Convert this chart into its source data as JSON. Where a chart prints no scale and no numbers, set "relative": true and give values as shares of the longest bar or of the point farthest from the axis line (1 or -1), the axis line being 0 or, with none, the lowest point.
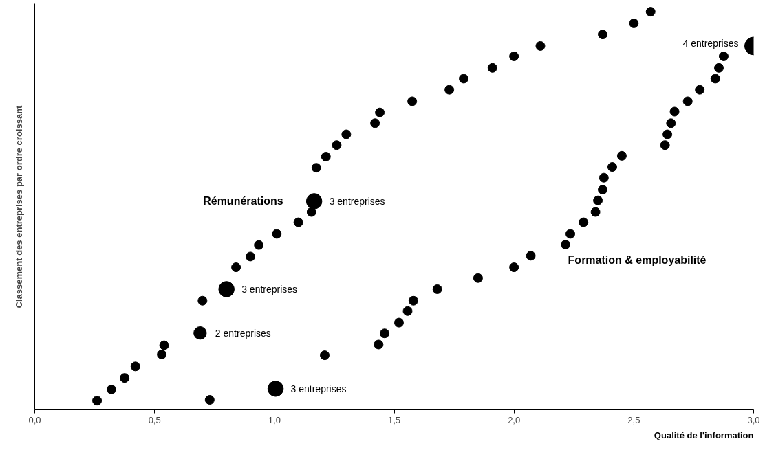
{
  "chart_data": {
    "type": "bubble",
    "relative": true,
    "xlabel": "Qualité de l'information",
    "ylabel": "Classement des entreprises par ordre croissant",
    "xlim": [
      0,
      3
    ],
    "xticks": [
      {
        "value": 0,
        "label": "0,0"
      },
      {
        "value": 0.5,
        "label": "0,5"
      },
      {
        "value": 1,
        "label": "1,0"
      },
      {
        "value": 1.5,
        "label": "1,5"
      },
      {
        "value": 2,
        "label": "2,0"
      },
      {
        "value": 2.5,
        "label": "2,5"
      },
      {
        "value": 3,
        "label": "3,0"
      }
    ],
    "grid": false,
    "series": [
      {
        "name": "Rémunérations",
        "color": "#000000",
        "x": [
          0.26,
          0.32,
          0.375,
          0.42,
          0.53,
          0.54,
          0.69,
          0.7,
          0.8,
          0.84,
          0.9,
          0.935,
          1.01,
          1.1,
          1.155,
          1.166,
          1.175,
          1.215,
          1.26,
          1.3,
          1.42,
          1.44,
          1.575,
          1.73,
          1.79,
          1.91,
          2.0,
          2.11,
          2.37,
          2.5,
          2.57
        ],
        "values": [
          0.023,
          0.051,
          0.08,
          0.109,
          0.139,
          0.162,
          0.193,
          0.274,
          0.303,
          0.358,
          0.385,
          0.414,
          0.442,
          0.471,
          0.497,
          0.524,
          0.608,
          0.636,
          0.665,
          0.692,
          0.72,
          0.747,
          0.775,
          0.804,
          0.832,
          0.859,
          0.888,
          0.914,
          0.943,
          0.971,
          1.0
        ],
        "sizes": [
          0.25,
          0.25,
          0.25,
          0.25,
          0.25,
          0.25,
          0.5,
          0.25,
          0.75,
          0.25,
          0.25,
          0.25,
          0.25,
          0.25,
          0.25,
          0.75,
          0.25,
          0.25,
          0.25,
          0.25,
          0.25,
          0.25,
          0.25,
          0.25,
          0.25,
          0.25,
          0.25,
          0.25,
          0.25,
          0.25,
          0.25
        ]
      },
      {
        "name": "Formation & employabilité",
        "color": "#000000",
        "x": [
          0.73,
          1.005,
          1.21,
          1.435,
          1.46,
          1.52,
          1.556,
          1.58,
          1.68,
          1.85,
          2.0,
          2.07,
          2.215,
          2.235,
          2.29,
          2.34,
          2.35,
          2.37,
          2.375,
          2.41,
          2.45,
          2.63,
          2.64,
          2.655,
          2.67,
          2.725,
          2.775,
          2.84,
          2.855,
          2.875,
          3.0
        ],
        "values": [
          0.025,
          0.053,
          0.137,
          0.164,
          0.192,
          0.219,
          0.248,
          0.274,
          0.303,
          0.331,
          0.358,
          0.387,
          0.415,
          0.442,
          0.471,
          0.497,
          0.526,
          0.553,
          0.583,
          0.61,
          0.638,
          0.665,
          0.692,
          0.72,
          0.749,
          0.775,
          0.804,
          0.832,
          0.859,
          0.888,
          0.914
        ],
        "sizes": [
          0.25,
          0.75,
          0.25,
          0.25,
          0.25,
          0.25,
          0.25,
          0.25,
          0.25,
          0.25,
          0.25,
          0.25,
          0.25,
          0.25,
          0.25,
          0.25,
          0.25,
          0.25,
          0.25,
          0.25,
          0.25,
          0.25,
          0.25,
          0.25,
          0.25,
          0.25,
          0.25,
          0.25,
          0.25,
          0.25,
          1.0
        ]
      }
    ],
    "annotations": [
      {
        "text": "3 entreprises",
        "x": 1.166,
        "y": 0.524
      },
      {
        "text": "3 entreprises",
        "x": 0.8,
        "y": 0.303
      },
      {
        "text": "2 entreprises",
        "x": 0.69,
        "y": 0.193
      },
      {
        "text": "3 entreprises",
        "x": 1.005,
        "y": 0.053
      },
      {
        "text": "4 entreprises",
        "x": 3.0,
        "y": 0.914
      }
    ]
  }
}
